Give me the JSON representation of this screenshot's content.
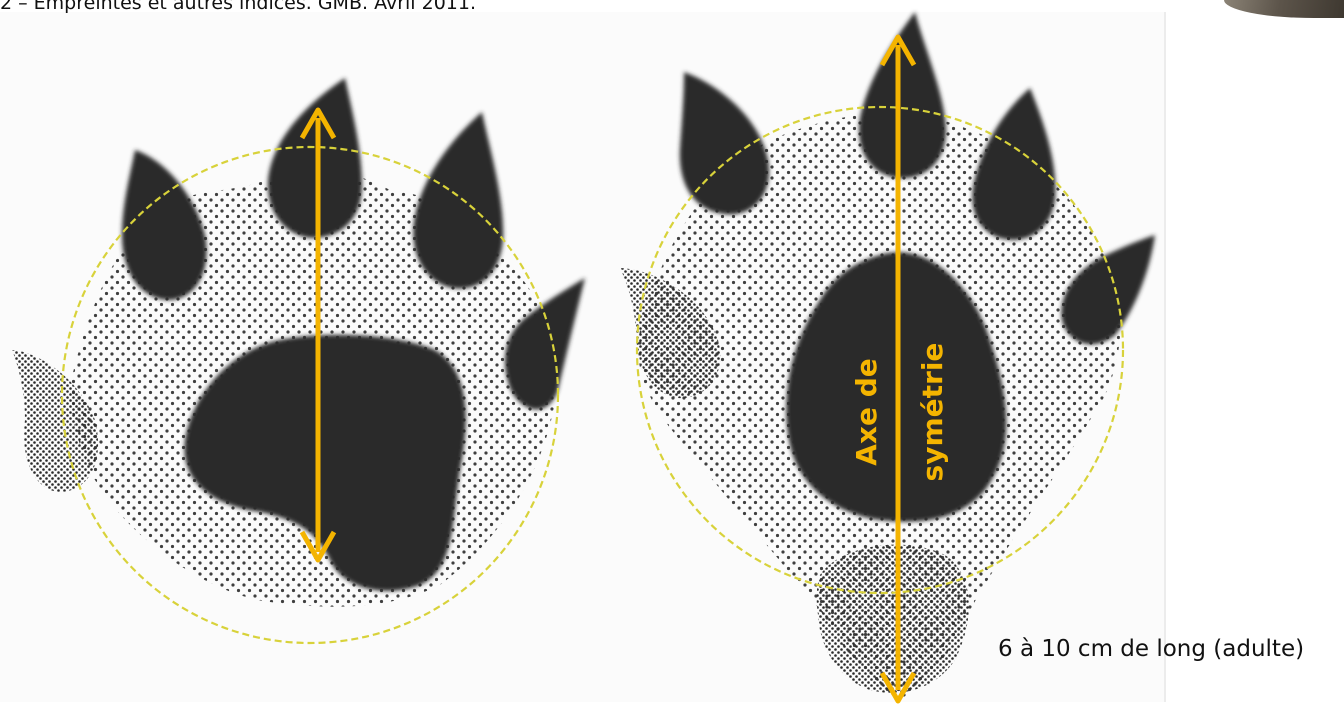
{
  "caption": "2 – Empreintes et autres indices. GMB. Avril 2011.",
  "axis_label_line1": "Axe de",
  "axis_label_line2": "symétrie",
  "size_note": "6 à 10 cm de long (adulte)",
  "colors": {
    "arrow": "#f4b400",
    "circle": "#d8d23a",
    "pad": "#2a2a2a",
    "dots": "#2a2a2a"
  }
}
